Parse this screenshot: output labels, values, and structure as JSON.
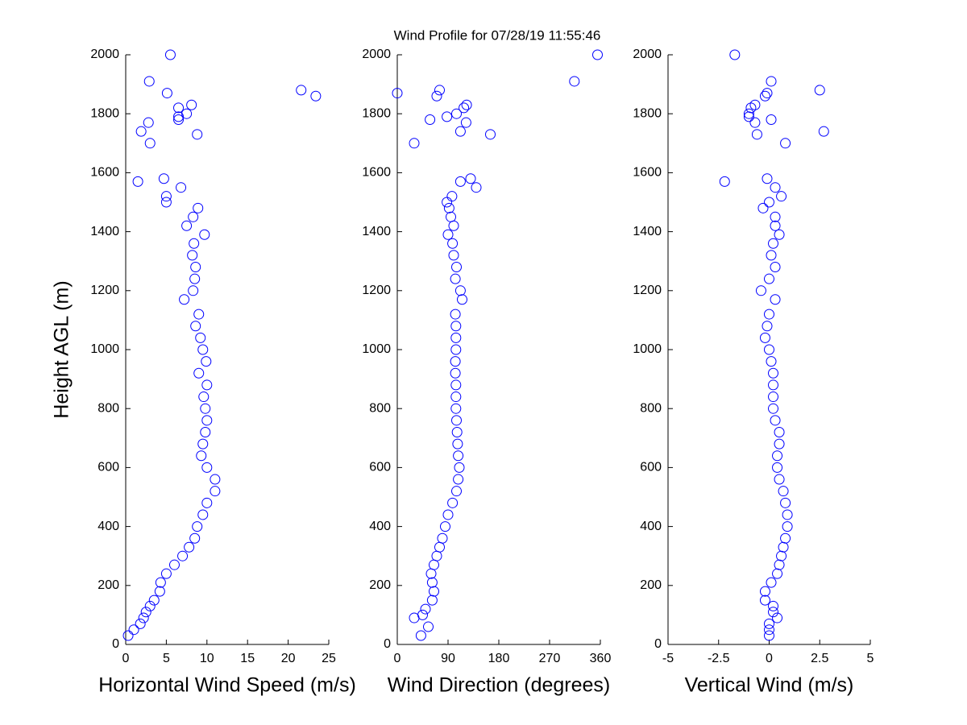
{
  "title": "Wind Profile for  07/28/19 11:55:46",
  "chart_data": [
    {
      "type": "scatter",
      "ylabel": "Height AGL (m)",
      "xlabel": "Horizontal Wind Speed (m/s)",
      "color": "#0000ff",
      "xlim": [
        0,
        25
      ],
      "xticks": [
        0,
        5,
        10,
        15,
        20,
        25
      ],
      "ylim": [
        0,
        2000
      ],
      "yticks": [
        0,
        200,
        400,
        600,
        800,
        1000,
        1200,
        1400,
        1600,
        1800,
        2000
      ],
      "x": [
        0.3,
        1,
        1.8,
        2.2,
        2.5,
        3,
        3.5,
        4.2,
        4.3,
        5,
        6,
        7,
        7.8,
        8.5,
        8.8,
        9.5,
        10,
        11,
        11,
        10,
        9.3,
        9.5,
        9.8,
        10,
        9.8,
        9.6,
        10,
        9,
        9.9,
        9.5,
        9.2,
        8.6,
        9,
        7.2,
        8.3,
        8.5,
        8.6,
        8.2,
        8.4,
        9.7,
        7.5,
        8.3,
        8.9,
        5,
        5,
        6.8,
        1.5,
        4.7,
        3,
        8.8,
        1.9,
        2.8,
        6.5,
        6.5,
        7.5,
        6.5,
        8.1,
        23.4,
        5.1,
        21.6,
        2.9,
        5.5
      ],
      "y": [
        30,
        50,
        70,
        90,
        110,
        130,
        150,
        180,
        210,
        240,
        270,
        300,
        330,
        360,
        400,
        440,
        480,
        520,
        560,
        600,
        640,
        680,
        720,
        760,
        800,
        840,
        880,
        920,
        960,
        1000,
        1040,
        1080,
        1120,
        1170,
        1200,
        1240,
        1280,
        1320,
        1360,
        1390,
        1420,
        1450,
        1480,
        1500,
        1520,
        1550,
        1570,
        1580,
        1700,
        1730,
        1740,
        1770,
        1780,
        1790,
        1800,
        1820,
        1830,
        1860,
        1870,
        1880,
        1910,
        2000
      ]
    },
    {
      "type": "scatter",
      "xlabel": "Wind Direction (degrees)",
      "color": "#0000ff",
      "xlim": [
        0,
        360
      ],
      "xticks": [
        0,
        90,
        180,
        270,
        360
      ],
      "ylim": [
        0,
        2000
      ],
      "yticks": [
        0,
        200,
        400,
        600,
        800,
        1000,
        1200,
        1400,
        1600,
        1800,
        2000
      ],
      "x": [
        42,
        55,
        30,
        45,
        50,
        62,
        65,
        62,
        60,
        65,
        70,
        75,
        80,
        85,
        90,
        98,
        105,
        108,
        110,
        108,
        107,
        106,
        105,
        104,
        104,
        104,
        103,
        103,
        104,
        104,
        104,
        103,
        115,
        112,
        103,
        105,
        100,
        98,
        90,
        100,
        95,
        92,
        88,
        97,
        140,
        112,
        130,
        30,
        165,
        112,
        122,
        58,
        88,
        105,
        118,
        123,
        70,
        0,
        75,
        314,
        355
      ],
      "y": [
        30,
        60,
        90,
        100,
        120,
        150,
        180,
        210,
        240,
        270,
        300,
        330,
        360,
        400,
        440,
        480,
        520,
        560,
        600,
        640,
        680,
        720,
        760,
        800,
        840,
        880,
        920,
        960,
        1000,
        1040,
        1080,
        1120,
        1170,
        1200,
        1240,
        1280,
        1320,
        1360,
        1390,
        1420,
        1450,
        1480,
        1500,
        1520,
        1550,
        1570,
        1580,
        1700,
        1730,
        1740,
        1770,
        1780,
        1790,
        1800,
        1820,
        1830,
        1860,
        1870,
        1880,
        1910,
        2000
      ]
    },
    {
      "type": "scatter",
      "xlabel": "Vertical Wind (m/s)",
      "color": "#0000ff",
      "xlim": [
        -5,
        5
      ],
      "xticks": [
        -5,
        -2.5,
        0,
        2.5,
        5
      ],
      "ylim": [
        0,
        2000
      ],
      "yticks": [
        0,
        200,
        400,
        600,
        800,
        1000,
        1200,
        1400,
        1600,
        1800,
        2000
      ],
      "x": [
        0,
        0,
        0,
        0.4,
        0.2,
        0.2,
        -0.2,
        -0.2,
        0.1,
        0.4,
        0.5,
        0.6,
        0.7,
        0.8,
        0.9,
        0.9,
        0.8,
        0.7,
        0.5,
        0.4,
        0.4,
        0.5,
        0.5,
        0.3,
        0.2,
        0.2,
        0.2,
        0.2,
        0.1,
        0,
        -0.2,
        -0.1,
        0,
        0.3,
        -0.4,
        0,
        0.3,
        0.1,
        0.2,
        0.5,
        0.3,
        0.3,
        -0.3,
        0,
        0.6,
        0.3,
        -2.2,
        -0.1,
        0.8,
        -0.6,
        2.7,
        -0.7,
        0.1,
        -1,
        -1,
        -0.9,
        -0.7,
        -0.2,
        -0.1,
        2.5,
        0.1,
        -1.7
      ],
      "y": [
        30,
        50,
        70,
        90,
        110,
        130,
        150,
        180,
        210,
        240,
        270,
        300,
        330,
        360,
        400,
        440,
        480,
        520,
        560,
        600,
        640,
        680,
        720,
        760,
        800,
        840,
        880,
        920,
        960,
        1000,
        1040,
        1080,
        1120,
        1170,
        1200,
        1240,
        1280,
        1320,
        1360,
        1390,
        1420,
        1450,
        1480,
        1500,
        1520,
        1550,
        1570,
        1580,
        1700,
        1730,
        1740,
        1770,
        1780,
        1790,
        1800,
        1820,
        1830,
        1860,
        1870,
        1880,
        1910,
        2000
      ]
    }
  ]
}
